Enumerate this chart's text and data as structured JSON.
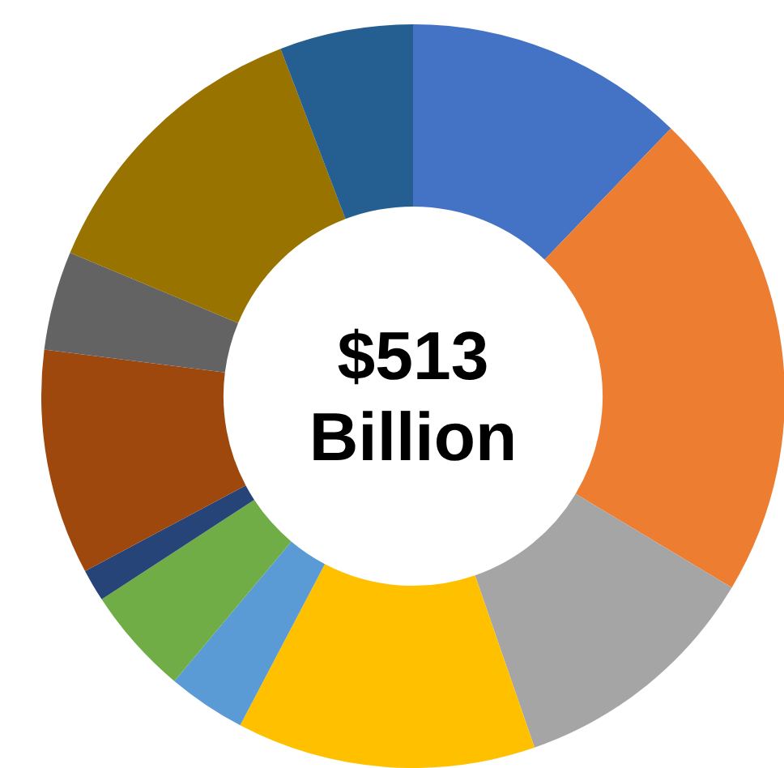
{
  "chart_data": {
    "type": "donut",
    "title": "$513 Billion",
    "categories": [
      null,
      null,
      null,
      null,
      null,
      null,
      null,
      null,
      null,
      null,
      null
    ],
    "values": [
      12.2,
      21.4,
      11.1,
      13,
      3.4,
      4.7,
      1.4,
      9.8,
      4.3,
      12.9,
      5.8
    ],
    "colors": [
      "#4472c4",
      "#ed7d31",
      "#a5a5a5",
      "#ffc000",
      "#5b9bd5",
      "#70ad47",
      "#264478",
      "#9e480e",
      "#636363",
      "#997300",
      "#255e91"
    ],
    "legend": false
  }
}
